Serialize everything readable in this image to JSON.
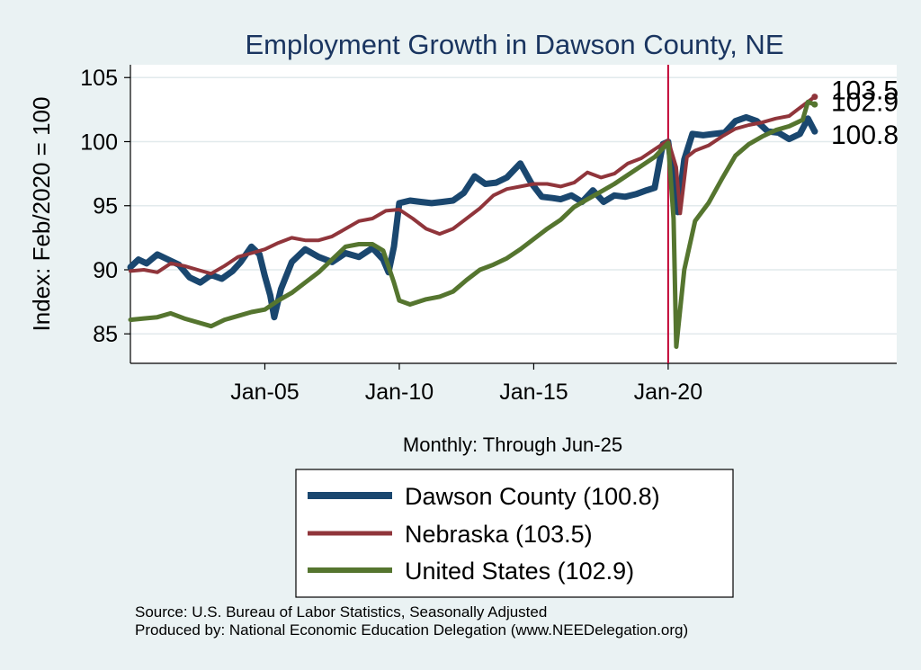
{
  "chart_data": {
    "type": "line",
    "title": "Employment Growth in Dawson  County, NE",
    "xlabel": "Monthly: Through Jun-25",
    "ylabel": "Index: Feb/2020 = 100",
    "xlim": [
      2000.0,
      2028.5
    ],
    "ylim": [
      82.7,
      106.0
    ],
    "x_ticks": [
      2005,
      2010,
      2015,
      2020
    ],
    "x_tick_labels": [
      "Jan-05",
      "Jan-10",
      "Jan-15",
      "Jan-20"
    ],
    "y_ticks": [
      85,
      90,
      95,
      100,
      105
    ],
    "y_tick_labels": [
      "85",
      "90",
      "95",
      "100",
      "105"
    ],
    "grid": true,
    "reference_line_x": 2020.0,
    "colors": {
      "background": "#eaf2f3",
      "plot_background": "#ffffff",
      "title": "#1a3560",
      "dawson": "#1a476f",
      "nebraska": "#90353b",
      "us": "#55752f",
      "ref_line": "#c10534",
      "grid": "#e2eaec"
    },
    "series": [
      {
        "name": "Dawson  County (100.8)",
        "key": "dawson",
        "end_label": "100.8",
        "points": [
          [
            2000.0,
            90.2
          ],
          [
            2000.3,
            90.8
          ],
          [
            2000.6,
            90.5
          ],
          [
            2001.0,
            91.2
          ],
          [
            2001.4,
            90.8
          ],
          [
            2001.8,
            90.4
          ],
          [
            2002.2,
            89.4
          ],
          [
            2002.6,
            89.0
          ],
          [
            2003.0,
            89.6
          ],
          [
            2003.4,
            89.3
          ],
          [
            2003.8,
            89.9
          ],
          [
            2004.1,
            90.6
          ],
          [
            2004.5,
            91.8
          ],
          [
            2004.8,
            91.2
          ],
          [
            2005.0,
            89.5
          ],
          [
            2005.2,
            88.0
          ],
          [
            2005.35,
            86.3
          ],
          [
            2005.6,
            88.5
          ],
          [
            2006.0,
            90.6
          ],
          [
            2006.5,
            91.6
          ],
          [
            2007.0,
            91.0
          ],
          [
            2007.5,
            90.6
          ],
          [
            2008.0,
            91.3
          ],
          [
            2008.5,
            91.0
          ],
          [
            2009.0,
            91.7
          ],
          [
            2009.4,
            90.8
          ],
          [
            2009.6,
            89.8
          ],
          [
            2009.8,
            91.8
          ],
          [
            2010.0,
            95.2
          ],
          [
            2010.4,
            95.4
          ],
          [
            2010.8,
            95.3
          ],
          [
            2011.2,
            95.2
          ],
          [
            2011.6,
            95.3
          ],
          [
            2012.0,
            95.4
          ],
          [
            2012.4,
            96.0
          ],
          [
            2012.8,
            97.3
          ],
          [
            2013.2,
            96.7
          ],
          [
            2013.6,
            96.8
          ],
          [
            2014.0,
            97.2
          ],
          [
            2014.5,
            98.3
          ],
          [
            2014.9,
            96.8
          ],
          [
            2015.3,
            95.7
          ],
          [
            2015.7,
            95.6
          ],
          [
            2016.0,
            95.5
          ],
          [
            2016.4,
            95.8
          ],
          [
            2016.8,
            95.3
          ],
          [
            2017.2,
            96.2
          ],
          [
            2017.6,
            95.3
          ],
          [
            2018.0,
            95.8
          ],
          [
            2018.4,
            95.7
          ],
          [
            2018.8,
            95.9
          ],
          [
            2019.2,
            96.2
          ],
          [
            2019.5,
            96.4
          ],
          [
            2019.8,
            99.8
          ],
          [
            2020.0,
            100.0
          ],
          [
            2020.2,
            97.0
          ],
          [
            2020.35,
            94.5
          ],
          [
            2020.6,
            98.6
          ],
          [
            2020.9,
            100.6
          ],
          [
            2021.3,
            100.5
          ],
          [
            2021.7,
            100.6
          ],
          [
            2022.1,
            100.7
          ],
          [
            2022.5,
            101.6
          ],
          [
            2022.9,
            101.9
          ],
          [
            2023.3,
            101.6
          ],
          [
            2023.7,
            100.8
          ],
          [
            2024.1,
            100.7
          ],
          [
            2024.5,
            100.2
          ],
          [
            2024.9,
            100.6
          ],
          [
            2025.2,
            101.8
          ],
          [
            2025.45,
            100.8
          ]
        ]
      },
      {
        "name": "Nebraska (103.5)",
        "key": "nebraska",
        "end_label": "103.5",
        "points": [
          [
            2000.0,
            89.9
          ],
          [
            2000.5,
            90.0
          ],
          [
            2001.0,
            89.8
          ],
          [
            2001.5,
            90.5
          ],
          [
            2002.0,
            90.3
          ],
          [
            2002.5,
            90.0
          ],
          [
            2003.0,
            89.7
          ],
          [
            2003.5,
            90.3
          ],
          [
            2004.0,
            91.0
          ],
          [
            2004.5,
            91.3
          ],
          [
            2005.0,
            91.6
          ],
          [
            2005.5,
            92.1
          ],
          [
            2006.0,
            92.5
          ],
          [
            2006.5,
            92.3
          ],
          [
            2007.0,
            92.3
          ],
          [
            2007.5,
            92.6
          ],
          [
            2008.0,
            93.2
          ],
          [
            2008.5,
            93.8
          ],
          [
            2009.0,
            94.0
          ],
          [
            2009.5,
            94.6
          ],
          [
            2010.0,
            94.7
          ],
          [
            2010.5,
            94.0
          ],
          [
            2011.0,
            93.2
          ],
          [
            2011.5,
            92.8
          ],
          [
            2012.0,
            93.2
          ],
          [
            2012.5,
            94.0
          ],
          [
            2013.0,
            94.8
          ],
          [
            2013.5,
            95.8
          ],
          [
            2014.0,
            96.3
          ],
          [
            2014.5,
            96.5
          ],
          [
            2015.0,
            96.7
          ],
          [
            2015.5,
            96.7
          ],
          [
            2016.0,
            96.5
          ],
          [
            2016.5,
            96.8
          ],
          [
            2017.0,
            97.6
          ],
          [
            2017.5,
            97.2
          ],
          [
            2018.0,
            97.5
          ],
          [
            2018.5,
            98.3
          ],
          [
            2019.0,
            98.7
          ],
          [
            2019.5,
            99.4
          ],
          [
            2020.0,
            100.1
          ],
          [
            2020.3,
            98.0
          ],
          [
            2020.45,
            94.4
          ],
          [
            2020.7,
            98.8
          ],
          [
            2021.0,
            99.3
          ],
          [
            2021.5,
            99.7
          ],
          [
            2022.0,
            100.4
          ],
          [
            2022.5,
            101.0
          ],
          [
            2023.0,
            101.3
          ],
          [
            2023.5,
            101.5
          ],
          [
            2024.0,
            101.8
          ],
          [
            2024.5,
            102.0
          ],
          [
            2025.0,
            102.8
          ],
          [
            2025.45,
            103.5
          ]
        ]
      },
      {
        "name": "United States (102.9)",
        "key": "us",
        "end_label": "102.9",
        "points": [
          [
            2000.0,
            86.1
          ],
          [
            2000.5,
            86.2
          ],
          [
            2001.0,
            86.3
          ],
          [
            2001.5,
            86.6
          ],
          [
            2002.0,
            86.2
          ],
          [
            2002.5,
            85.9
          ],
          [
            2003.0,
            85.6
          ],
          [
            2003.5,
            86.1
          ],
          [
            2004.0,
            86.4
          ],
          [
            2004.5,
            86.7
          ],
          [
            2005.0,
            86.9
          ],
          [
            2005.5,
            87.6
          ],
          [
            2006.0,
            88.2
          ],
          [
            2006.5,
            89.0
          ],
          [
            2007.0,
            89.8
          ],
          [
            2007.5,
            90.8
          ],
          [
            2008.0,
            91.8
          ],
          [
            2008.5,
            92.0
          ],
          [
            2009.0,
            92.0
          ],
          [
            2009.4,
            91.5
          ],
          [
            2009.8,
            89.0
          ],
          [
            2010.0,
            87.6
          ],
          [
            2010.4,
            87.3
          ],
          [
            2011.0,
            87.7
          ],
          [
            2011.5,
            87.9
          ],
          [
            2012.0,
            88.3
          ],
          [
            2012.5,
            89.2
          ],
          [
            2013.0,
            90.0
          ],
          [
            2013.5,
            90.4
          ],
          [
            2014.0,
            90.9
          ],
          [
            2014.5,
            91.6
          ],
          [
            2015.0,
            92.4
          ],
          [
            2015.5,
            93.2
          ],
          [
            2016.0,
            93.9
          ],
          [
            2016.5,
            94.9
          ],
          [
            2017.0,
            95.5
          ],
          [
            2017.5,
            96.1
          ],
          [
            2018.0,
            96.7
          ],
          [
            2018.5,
            97.4
          ],
          [
            2019.0,
            98.1
          ],
          [
            2019.5,
            98.8
          ],
          [
            2020.0,
            99.9
          ],
          [
            2020.2,
            94.0
          ],
          [
            2020.3,
            84.0
          ],
          [
            2020.6,
            90.0
          ],
          [
            2021.0,
            93.8
          ],
          [
            2021.5,
            95.2
          ],
          [
            2022.0,
            97.1
          ],
          [
            2022.5,
            98.9
          ],
          [
            2023.0,
            99.8
          ],
          [
            2023.5,
            100.4
          ],
          [
            2024.0,
            100.9
          ],
          [
            2024.5,
            101.2
          ],
          [
            2025.0,
            101.7
          ],
          [
            2025.2,
            103.1
          ],
          [
            2025.45,
            102.9
          ]
        ]
      }
    ]
  },
  "footer": {
    "source": "Source: U.S. Bureau of Labor Statistics, Seasonally Adjusted",
    "produced_by": "Produced by: National Economic Education Delegation (www.NEEDelegation.org)"
  }
}
